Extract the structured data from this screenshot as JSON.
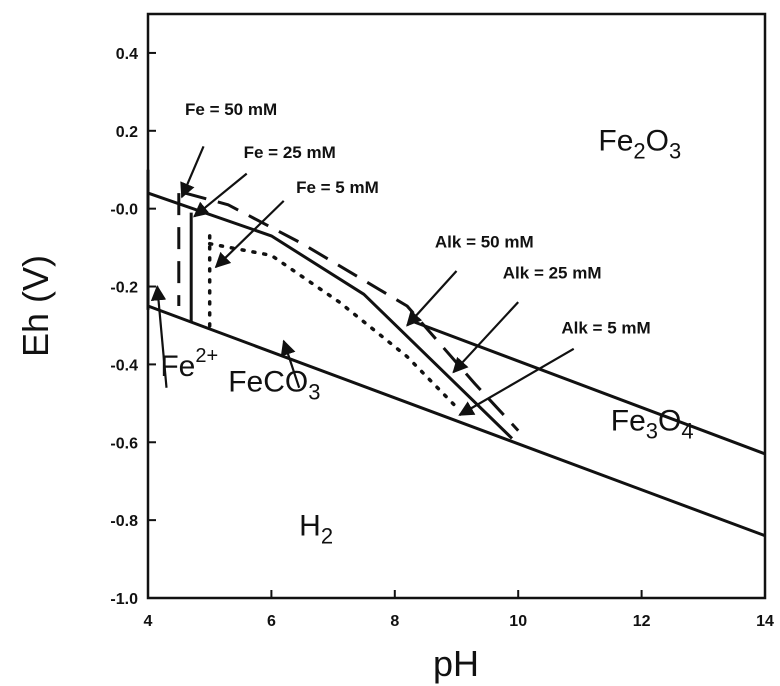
{
  "chart_data": {
    "type": "line",
    "xlabel": "pH",
    "ylabel": "Eh (V)",
    "xlim": [
      4,
      14
    ],
    "ylim": [
      -1.0,
      0.5
    ],
    "x_ticks": [
      4,
      6,
      8,
      10,
      12,
      14
    ],
    "x_tick_labels": [
      "4",
      "6",
      "8",
      "10",
      "12",
      "14"
    ],
    "y_ticks": [
      0.4,
      0.2,
      0.0,
      -0.2,
      -0.4,
      -0.6,
      -0.8,
      -1.0
    ],
    "y_tick_labels": [
      "0.4",
      "0.2",
      "-0.0",
      "-0.2",
      "-0.4",
      "-0.6",
      "-0.8",
      "-1.0"
    ],
    "series": [
      {
        "style": "solid",
        "points": [
          [
            4,
            -0.25
          ],
          [
            14,
            -0.84
          ]
        ]
      },
      {
        "style": "solid",
        "points": [
          [
            8.3,
            -0.29
          ],
          [
            14,
            -0.63
          ]
        ]
      },
      {
        "style": "solid",
        "points": [
          [
            4,
            0.04
          ],
          [
            6,
            -0.07
          ],
          [
            7.5,
            -0.22
          ],
          [
            9.9,
            -0.59
          ]
        ]
      },
      {
        "style": "solid",
        "points": [
          [
            4.7,
            -0.01
          ],
          [
            4.7,
            -0.29
          ]
        ]
      },
      {
        "style": "solid",
        "points": [
          [
            4,
            0.1
          ],
          [
            4,
            -0.26
          ]
        ]
      },
      {
        "style": "dashed",
        "points": [
          [
            4.5,
            0.04
          ],
          [
            4.5,
            -0.25
          ]
        ]
      },
      {
        "style": "dashed",
        "points": [
          [
            4.6,
            0.04
          ],
          [
            5.3,
            0.01
          ],
          [
            6.5,
            -0.09
          ],
          [
            8.2,
            -0.25
          ],
          [
            9.3,
            -0.45
          ],
          [
            10.0,
            -0.57
          ]
        ]
      },
      {
        "style": "dotted",
        "points": [
          [
            5.0,
            -0.07
          ],
          [
            5.0,
            -0.32
          ]
        ]
      },
      {
        "style": "dotted",
        "points": [
          [
            5.0,
            -0.09
          ],
          [
            6.0,
            -0.12
          ],
          [
            7.1,
            -0.24
          ],
          [
            8.2,
            -0.38
          ],
          [
            9.0,
            -0.51
          ]
        ]
      }
    ],
    "phase_labels": [
      {
        "base": "Fe",
        "sub": "2",
        "mid": "O",
        "sub2": "3",
        "sup": "",
        "x": 11.3,
        "y": 0.15
      },
      {
        "base": "Fe",
        "sub": "3",
        "mid": "O",
        "sub2": "4",
        "sup": "",
        "x": 11.5,
        "y": -0.57
      },
      {
        "base": "FeCO",
        "sub": "3",
        "mid": "",
        "sub2": "",
        "sup": "",
        "x": 5.3,
        "y": -0.47
      },
      {
        "base": "Fe",
        "sub": "",
        "mid": "",
        "sub2": "",
        "sup": "2+",
        "x": 4.2,
        "y": -0.43
      },
      {
        "base": "H",
        "sub": "2",
        "mid": "",
        "sub2": "",
        "sup": "",
        "x": 6.45,
        "y": -0.84
      }
    ],
    "annotations": [
      {
        "text": "Fe = 50 mM",
        "x": 4.6,
        "y": 0.24,
        "arrow_from": [
          4.9,
          0.16
        ],
        "arrow_to": [
          4.55,
          0.03
        ]
      },
      {
        "text": "Fe = 25 mM",
        "x": 5.55,
        "y": 0.13,
        "arrow_from": [
          5.6,
          0.09
        ],
        "arrow_to": [
          4.75,
          -0.02
        ]
      },
      {
        "text": "Fe = 5 mM",
        "x": 6.4,
        "y": 0.04,
        "arrow_from": [
          6.2,
          0.02
        ],
        "arrow_to": [
          5.1,
          -0.15
        ]
      },
      {
        "text": "Alk = 50 mM",
        "x": 8.65,
        "y": -0.1,
        "arrow_from": [
          9.0,
          -0.16
        ],
        "arrow_to": [
          8.2,
          -0.3
        ]
      },
      {
        "text": "Alk = 25 mM",
        "x": 9.75,
        "y": -0.18,
        "arrow_from": [
          10.0,
          -0.24
        ],
        "arrow_to": [
          8.95,
          -0.42
        ]
      },
      {
        "text": "Alk = 5 mM",
        "x": 10.7,
        "y": -0.32,
        "arrow_from": [
          10.9,
          -0.36
        ],
        "arrow_to": [
          9.05,
          -0.53
        ]
      },
      {
        "text": "",
        "x": 0,
        "y": 0,
        "arrow_from": [
          4.3,
          -0.46
        ],
        "arrow_to": [
          4.15,
          -0.2
        ]
      },
      {
        "text": "",
        "x": 0,
        "y": 0,
        "arrow_from": [
          6.45,
          -0.46
        ],
        "arrow_to": [
          6.2,
          -0.34
        ]
      }
    ]
  }
}
